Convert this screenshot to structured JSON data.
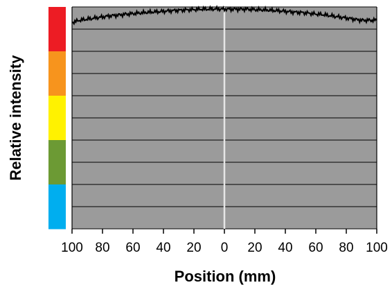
{
  "chart_data": {
    "type": "line",
    "xlabel": "Position (mm)",
    "ylabel": "Relative intensity",
    "x_tick_labels": [
      "100",
      "80",
      "60",
      "40",
      "20",
      "0",
      "20",
      "40",
      "60",
      "80",
      "100"
    ],
    "x_tick_values": [
      -100,
      -80,
      -60,
      -40,
      -20,
      0,
      20,
      40,
      60,
      80,
      100
    ],
    "xlim": [
      -100,
      100
    ],
    "ylim": [
      0,
      1
    ],
    "grid": "horizontal",
    "plot_background": "#9b9b9b",
    "center_line_color": "#e6e6e6",
    "intensity_scale_colors": [
      "#ed1c24",
      "#f7941d",
      "#fff200",
      "#6c9a34",
      "#00aeef"
    ],
    "series": [
      {
        "color": "#000000",
        "x": [
          -100,
          -95,
          -90,
          -85,
          -80,
          -75,
          -70,
          -65,
          -60,
          -55,
          -50,
          -45,
          -40,
          -35,
          -30,
          -25,
          -20,
          -15,
          -10,
          -5,
          0,
          5,
          10,
          15,
          20,
          25,
          30,
          35,
          40,
          45,
          50,
          55,
          60,
          65,
          70,
          75,
          80,
          85,
          90,
          95,
          100
        ],
        "y": [
          0.93,
          0.94,
          0.945,
          0.95,
          0.955,
          0.96,
          0.963,
          0.967,
          0.97,
          0.973,
          0.976,
          0.978,
          0.98,
          0.983,
          0.985,
          0.987,
          0.988,
          0.99,
          0.99,
          0.991,
          0.99,
          0.99,
          0.99,
          0.99,
          0.988,
          0.987,
          0.985,
          0.983,
          0.98,
          0.977,
          0.975,
          0.972,
          0.968,
          0.965,
          0.96,
          0.955,
          0.95,
          0.945,
          0.94,
          0.94,
          0.94
        ]
      }
    ]
  }
}
